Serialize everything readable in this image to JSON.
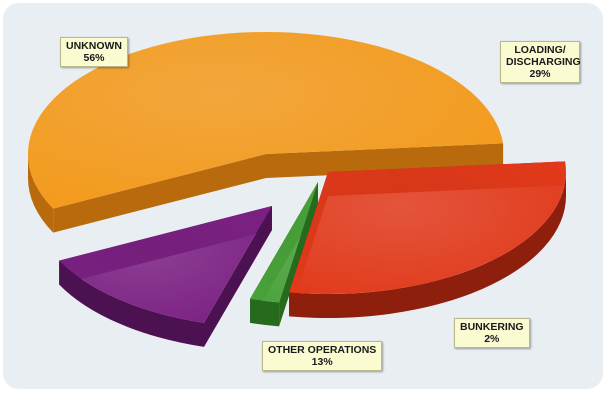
{
  "chart_data": {
    "type": "pie",
    "style": "3d-exploded",
    "slices": [
      {
        "name": "LOADING/ DISCHARGING",
        "value": 29,
        "label": "29%",
        "color": "#e23a1b",
        "side_color": "#8e1f0d"
      },
      {
        "name": "BUNKERING",
        "value": 2,
        "label": "2%",
        "color": "#4aa23a",
        "side_color": "#266a1d"
      },
      {
        "name": "OTHER OPERATIONS",
        "value": 13,
        "label": "13%",
        "color": "#7c2183",
        "side_color": "#4b1150"
      },
      {
        "name": "UNKNOWN",
        "value": 56,
        "label": "56%",
        "color": "#f39a1c",
        "side_color": "#b86a0c"
      }
    ]
  }
}
